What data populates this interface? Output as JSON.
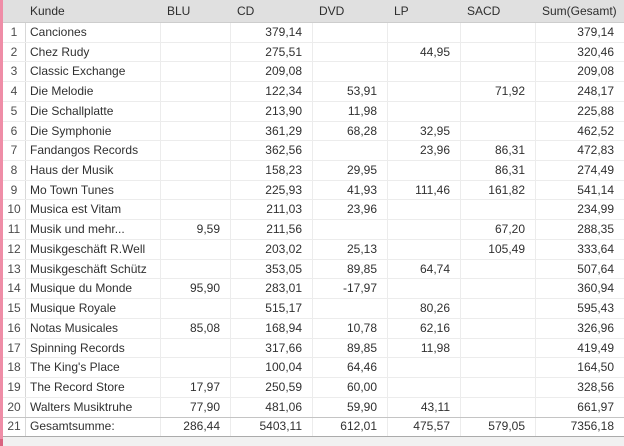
{
  "table": {
    "columns": [
      {
        "key": "num",
        "label": ""
      },
      {
        "key": "kunde",
        "label": "Kunde"
      },
      {
        "key": "blu",
        "label": "BLU"
      },
      {
        "key": "cd",
        "label": "CD"
      },
      {
        "key": "dvd",
        "label": "DVD"
      },
      {
        "key": "lp",
        "label": "LP"
      },
      {
        "key": "sacd",
        "label": "SACD"
      },
      {
        "key": "sum",
        "label": "Sum(Gesamt)"
      }
    ],
    "rows": [
      {
        "num": "1",
        "kunde": "Canciones",
        "blu": "",
        "cd": "379,14",
        "dvd": "",
        "lp": "",
        "sacd": "",
        "sum": "379,14"
      },
      {
        "num": "2",
        "kunde": "Chez Rudy",
        "blu": "",
        "cd": "275,51",
        "dvd": "",
        "lp": "44,95",
        "sacd": "",
        "sum": "320,46"
      },
      {
        "num": "3",
        "kunde": "Classic Exchange",
        "blu": "",
        "cd": "209,08",
        "dvd": "",
        "lp": "",
        "sacd": "",
        "sum": "209,08"
      },
      {
        "num": "4",
        "kunde": "Die Melodie",
        "blu": "",
        "cd": "122,34",
        "dvd": "53,91",
        "lp": "",
        "sacd": "71,92",
        "sum": "248,17"
      },
      {
        "num": "5",
        "kunde": "Die Schallplatte",
        "blu": "",
        "cd": "213,90",
        "dvd": "11,98",
        "lp": "",
        "sacd": "",
        "sum": "225,88"
      },
      {
        "num": "6",
        "kunde": "Die Symphonie",
        "blu": "",
        "cd": "361,29",
        "dvd": "68,28",
        "lp": "32,95",
        "sacd": "",
        "sum": "462,52"
      },
      {
        "num": "7",
        "kunde": "Fandangos Records",
        "blu": "",
        "cd": "362,56",
        "dvd": "",
        "lp": "23,96",
        "sacd": "86,31",
        "sum": "472,83"
      },
      {
        "num": "8",
        "kunde": "Haus der Musik",
        "blu": "",
        "cd": "158,23",
        "dvd": "29,95",
        "lp": "",
        "sacd": "86,31",
        "sum": "274,49"
      },
      {
        "num": "9",
        "kunde": "Mo Town Tunes",
        "blu": "",
        "cd": "225,93",
        "dvd": "41,93",
        "lp": "111,46",
        "sacd": "161,82",
        "sum": "541,14"
      },
      {
        "num": "10",
        "kunde": "Musica est Vitam",
        "blu": "",
        "cd": "211,03",
        "dvd": "23,96",
        "lp": "",
        "sacd": "",
        "sum": "234,99"
      },
      {
        "num": "11",
        "kunde": "Musik und mehr...",
        "blu": "9,59",
        "cd": "211,56",
        "dvd": "",
        "lp": "",
        "sacd": "67,20",
        "sum": "288,35"
      },
      {
        "num": "12",
        "kunde": "Musikgeschäft R.Well",
        "blu": "",
        "cd": "203,02",
        "dvd": "25,13",
        "lp": "",
        "sacd": "105,49",
        "sum": "333,64"
      },
      {
        "num": "13",
        "kunde": "Musikgeschäft Schütz",
        "blu": "",
        "cd": "353,05",
        "dvd": "89,85",
        "lp": "64,74",
        "sacd": "",
        "sum": "507,64"
      },
      {
        "num": "14",
        "kunde": "Musique du Monde",
        "blu": "95,90",
        "cd": "283,01",
        "dvd": "-17,97",
        "lp": "",
        "sacd": "",
        "sum": "360,94"
      },
      {
        "num": "15",
        "kunde": "Musique Royale",
        "blu": "",
        "cd": "515,17",
        "dvd": "",
        "lp": "80,26",
        "sacd": "",
        "sum": "595,43"
      },
      {
        "num": "16",
        "kunde": "Notas Musicales",
        "blu": "85,08",
        "cd": "168,94",
        "dvd": "10,78",
        "lp": "62,16",
        "sacd": "",
        "sum": "326,96"
      },
      {
        "num": "17",
        "kunde": "Spinning Records",
        "blu": "",
        "cd": "317,66",
        "dvd": "89,85",
        "lp": "11,98",
        "sacd": "",
        "sum": "419,49"
      },
      {
        "num": "18",
        "kunde": "The King's Place",
        "blu": "",
        "cd": "100,04",
        "dvd": "64,46",
        "lp": "",
        "sacd": "",
        "sum": "164,50"
      },
      {
        "num": "19",
        "kunde": "The Record Store",
        "blu": "17,97",
        "cd": "250,59",
        "dvd": "60,00",
        "lp": "",
        "sacd": "",
        "sum": "328,56"
      },
      {
        "num": "20",
        "kunde": "Walters Musiktruhe",
        "blu": "77,90",
        "cd": "481,06",
        "dvd": "59,90",
        "lp": "43,11",
        "sacd": "",
        "sum": "661,97"
      },
      {
        "num": "21",
        "kunde": "Gesamtsumme:",
        "blu": "286,44",
        "cd": "5403,11",
        "dvd": "612,01",
        "lp": "475,57",
        "sacd": "579,05",
        "sum": "7356,18",
        "total": true
      }
    ]
  },
  "colors": {
    "selection_strip_pink": "#ef8da7",
    "selection_strip_pink_dark": "#d96480",
    "header_bg": "#e0e0e0"
  }
}
